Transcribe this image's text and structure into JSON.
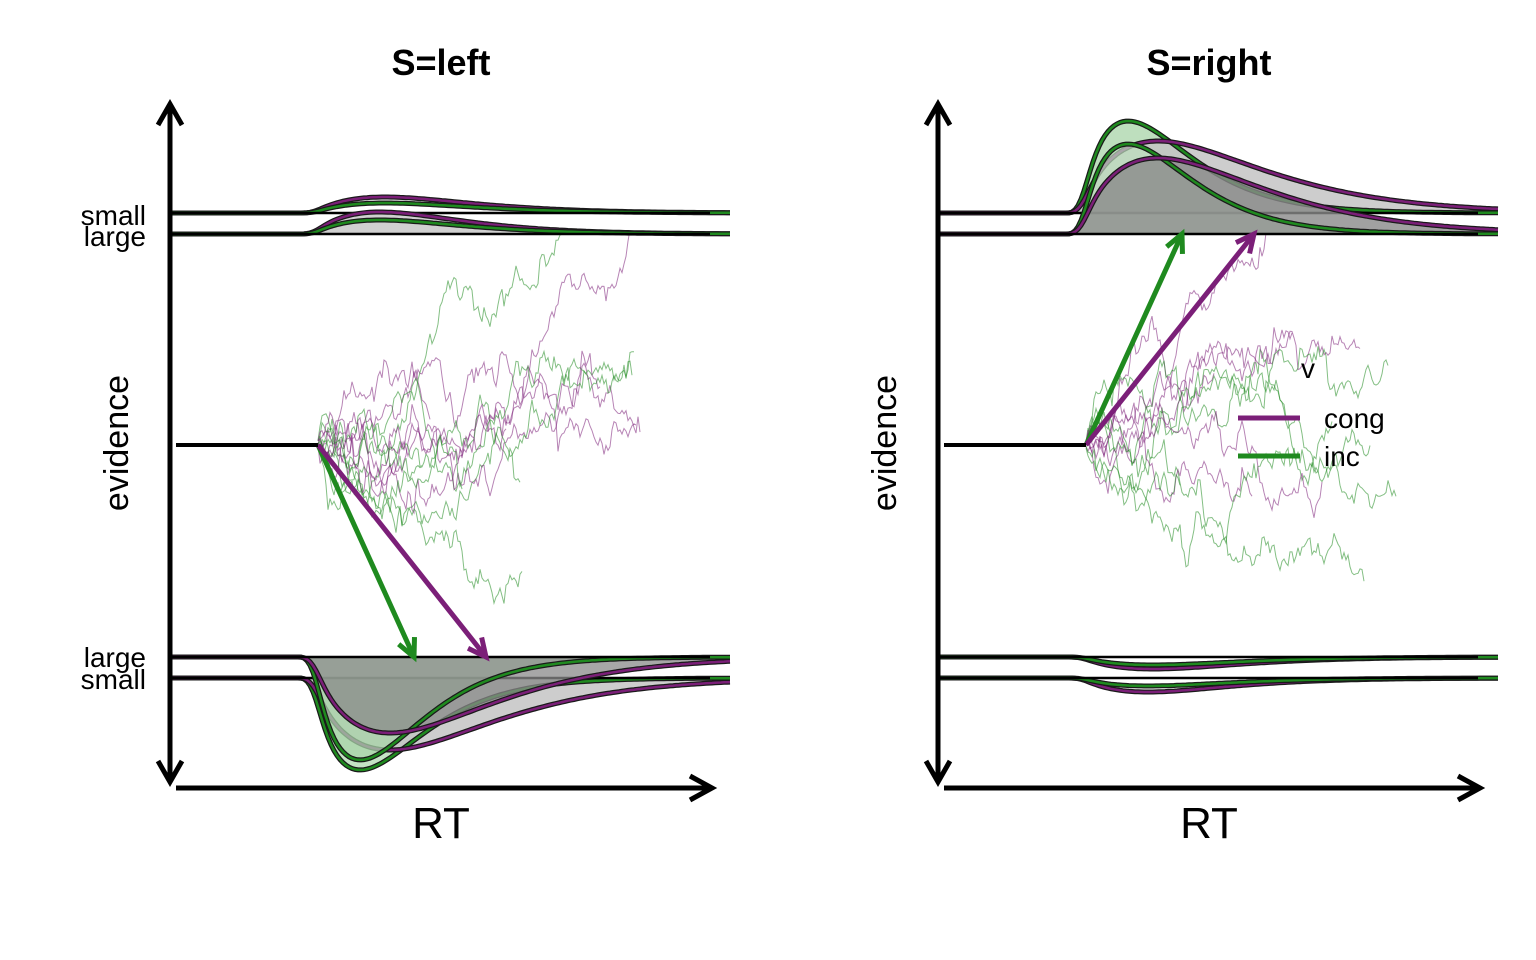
{
  "chart_data": [
    {
      "type": "line",
      "title": "S=left",
      "xlabel": "RT",
      "ylabel": "evidence",
      "upper_bounds": [
        "small",
        "large"
      ],
      "lower_bounds": [
        "large",
        "small"
      ],
      "series": [
        {
          "name": "cong",
          "color": "#7b1f78",
          "response": "lower"
        },
        {
          "name": "inc",
          "color": "#1f8a1f",
          "response": "lower"
        }
      ],
      "legend": null
    },
    {
      "type": "line",
      "title": "S=right",
      "xlabel": "RT",
      "ylabel": "evidence",
      "upper_bounds": [],
      "lower_bounds": [],
      "series": [
        {
          "name": "cong",
          "color": "#7b1f78",
          "response": "upper"
        },
        {
          "name": "inc",
          "color": "#1f8a1f",
          "response": "upper"
        }
      ],
      "legend": {
        "title": "v",
        "placement": "right",
        "items": [
          {
            "label": "cong",
            "color": "#7b1f78"
          },
          {
            "label": "inc",
            "color": "#1f8a1f"
          }
        ]
      }
    }
  ],
  "colors": {
    "cong": "#7b1f78",
    "inc": "#1f8a1f",
    "fill_dark": "#8a8a8a",
    "fill_light": "#c4c4c4"
  }
}
